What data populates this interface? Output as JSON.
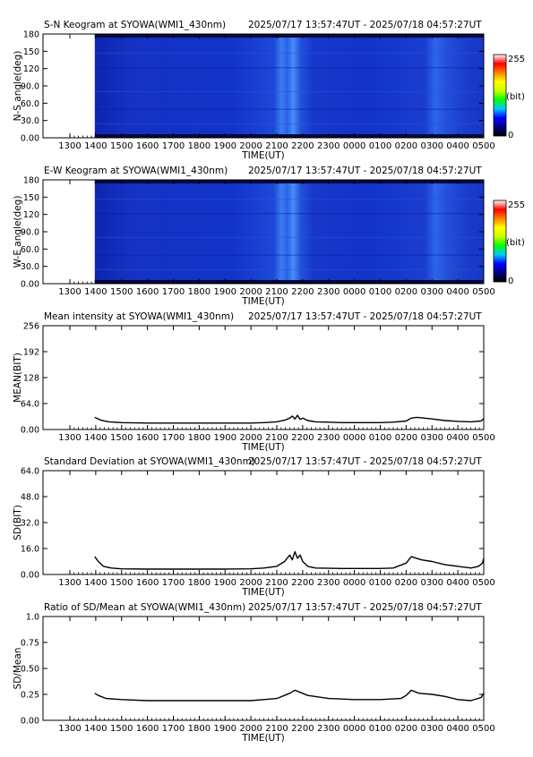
{
  "shared": {
    "x_ticks": [
      "1300",
      "1400",
      "1500",
      "1600",
      "1700",
      "1800",
      "1900",
      "2000",
      "2100",
      "2200",
      "2300",
      "0000",
      "0100",
      "0200",
      "0300",
      "0400",
      "0500"
    ],
    "xlabel": "TIME(UT)",
    "time_range": "2025/07/17 13:57:47UT - 2025/07/18 04:57:27UT"
  },
  "colors": {
    "colorbar": [
      "#000000",
      "#000080",
      "#0000ff",
      "#00c8ff",
      "#00ff00",
      "#c8ff00",
      "#ffff00",
      "#ff8000",
      "#ff0000",
      "#ffffff"
    ],
    "keogram_base": "#1233c8"
  },
  "colorbar": {
    "max_label": "255",
    "mid_label": "(bit)",
    "min_label": "0"
  },
  "chart_data": [
    {
      "type": "heatmap",
      "title": "S-N Keogram at SYOWA(WMI1_430nm)",
      "ylabel": "N-S angle(deg)",
      "xlabel": "TIME(UT)",
      "y_ticks": [
        "0.00",
        "30.0",
        "60.0",
        "90.0",
        "120",
        "150",
        "180"
      ],
      "ylim": [
        0,
        180
      ],
      "data_start": "13:57:47",
      "bright_bands": [
        {
          "time": "21:45",
          "intensity": "high"
        },
        {
          "time": "02:20",
          "intensity": "moderate"
        }
      ]
    },
    {
      "type": "heatmap",
      "title": "E-W Keogram at SYOWA(WMI1_430nm)",
      "ylabel": "W-E angle(deg)",
      "xlabel": "TIME(UT)",
      "y_ticks": [
        "0.00",
        "30.0",
        "60.0",
        "90.0",
        "120",
        "150",
        "180"
      ],
      "ylim": [
        0,
        180
      ],
      "data_start": "13:57:47",
      "bright_bands": [
        {
          "time": "21:45",
          "intensity": "high"
        },
        {
          "time": "02:20",
          "intensity": "moderate"
        }
      ]
    },
    {
      "type": "line",
      "title": "Mean intensity at SYOWA(WMI1_430nm)",
      "ylabel": "MEAN(BIT)",
      "xlabel": "TIME(UT)",
      "y_ticks": [
        "0.00",
        "64.0",
        "128",
        "192",
        "256"
      ],
      "ylim": [
        0,
        256
      ],
      "x_hours": [
        13.96,
        14.2,
        14.5,
        15,
        16,
        17,
        18,
        19,
        20,
        20.5,
        21,
        21.3,
        21.5,
        21.6,
        21.7,
        21.8,
        21.9,
        22.0,
        22.2,
        22.5,
        23,
        23.5,
        24,
        25,
        25.5,
        26,
        26.2,
        26.4,
        26.6,
        27,
        27.5,
        28,
        28.5,
        28.9,
        29
      ],
      "values": [
        30,
        23,
        19,
        17,
        16,
        16,
        16,
        16,
        16,
        17,
        19,
        23,
        28,
        33,
        26,
        35,
        25,
        28,
        22,
        19,
        18,
        17,
        17,
        17,
        18,
        21,
        28,
        30,
        29,
        26,
        22,
        20,
        19,
        21,
        27
      ]
    },
    {
      "type": "line",
      "title": "Standard Deviation at SYOWA(WMI1_430nm)",
      "ylabel": "SD(BIT)",
      "xlabel": "TIME(UT)",
      "y_ticks": [
        "0.00",
        "16.0",
        "32.0",
        "48.0",
        "64.0"
      ],
      "ylim": [
        0,
        64
      ],
      "x_hours": [
        13.96,
        14.1,
        14.3,
        14.6,
        15,
        16,
        17,
        18,
        19,
        20,
        20.5,
        21,
        21.3,
        21.5,
        21.6,
        21.7,
        21.8,
        21.9,
        22.0,
        22.2,
        22.5,
        23,
        23.5,
        24,
        25,
        25.5,
        26,
        26.2,
        26.4,
        26.6,
        27,
        27.5,
        28,
        28.5,
        28.8,
        28.95,
        29
      ],
      "values": [
        11,
        8,
        5,
        4,
        3.5,
        3.3,
        3.3,
        3.3,
        3.3,
        3.5,
        4,
        5,
        8,
        12,
        9,
        14,
        10,
        12,
        8,
        5,
        4,
        3.8,
        3.7,
        3.7,
        3.7,
        4,
        7,
        11,
        10,
        9,
        8,
        6,
        5,
        4,
        5,
        7,
        10
      ]
    },
    {
      "type": "line",
      "title": "Ratio of SD/Mean at SYOWA(WMI1_430nm)",
      "ylabel": "SD/Mean",
      "xlabel": "TIME(UT)",
      "y_ticks": [
        "0.00",
        "0.25",
        "0.50",
        "0.75",
        "1.0"
      ],
      "ylim": [
        0,
        1.0
      ],
      "x_hours": [
        13.96,
        14.1,
        14.4,
        15,
        16,
        17,
        18,
        19,
        20,
        20.5,
        21,
        21.5,
        21.7,
        21.9,
        22.2,
        23,
        24,
        25,
        25.8,
        26,
        26.2,
        26.5,
        27,
        27.5,
        28,
        28.5,
        28.9,
        29
      ],
      "values": [
        0.26,
        0.24,
        0.21,
        0.2,
        0.19,
        0.19,
        0.19,
        0.19,
        0.19,
        0.2,
        0.21,
        0.26,
        0.29,
        0.27,
        0.24,
        0.21,
        0.2,
        0.2,
        0.21,
        0.24,
        0.29,
        0.26,
        0.25,
        0.23,
        0.2,
        0.19,
        0.22,
        0.26
      ]
    }
  ]
}
